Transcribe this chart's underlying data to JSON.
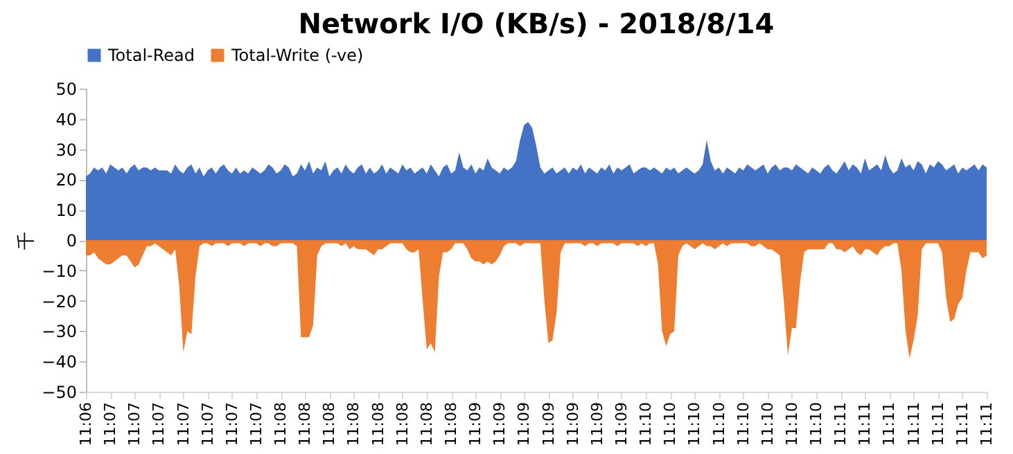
{
  "chart_data": {
    "type": "area",
    "title": "Network I/O (KB/s) - 2018/8/14",
    "ylabel": "千",
    "categories": [
      "11:06",
      null,
      null,
      null,
      null,
      null,
      "11:07",
      null,
      null,
      null,
      null,
      null,
      "11:07",
      null,
      null,
      null,
      null,
      null,
      "11:07",
      null,
      null,
      null,
      null,
      null,
      "11:07",
      null,
      null,
      null,
      null,
      null,
      "11:07",
      null,
      null,
      null,
      null,
      null,
      "11:07",
      null,
      null,
      null,
      null,
      null,
      "11:07",
      null,
      null,
      null,
      null,
      null,
      "11:08",
      null,
      null,
      null,
      null,
      null,
      "11:08",
      null,
      null,
      null,
      null,
      null,
      "11:08",
      null,
      null,
      null,
      null,
      null,
      "11:08",
      null,
      null,
      null,
      null,
      null,
      "11:08",
      null,
      null,
      null,
      null,
      null,
      "11:08",
      null,
      null,
      null,
      null,
      null,
      "11:08",
      null,
      null,
      null,
      null,
      null,
      "11:08",
      null,
      null,
      null,
      null,
      null,
      "11:09",
      null,
      null,
      null,
      null,
      null,
      "11:09",
      null,
      null,
      null,
      null,
      null,
      "11:09",
      null,
      null,
      null,
      null,
      null,
      "11:09",
      null,
      null,
      null,
      null,
      null,
      "11:09",
      null,
      null,
      null,
      null,
      null,
      "11:09",
      null,
      null,
      null,
      null,
      null,
      "11:09",
      null,
      null,
      null,
      null,
      null,
      "11:10",
      null,
      null,
      null,
      null,
      null,
      "11:10",
      null,
      null,
      null,
      null,
      null,
      "11:10",
      null,
      null,
      null,
      null,
      null,
      "11:10",
      null,
      null,
      null,
      null,
      null,
      "11:10",
      null,
      null,
      null,
      null,
      null,
      "11:10",
      null,
      null,
      null,
      null,
      null,
      "11:10",
      null,
      null,
      null,
      null,
      null,
      "11:10",
      null,
      null,
      null,
      null,
      null,
      "11:11",
      null,
      null,
      null,
      null,
      null,
      "11:11",
      null,
      null,
      null,
      null,
      null,
      "11:11",
      null,
      null,
      null,
      null,
      null,
      "11:11",
      null,
      null,
      null,
      null,
      null,
      "11:11",
      null,
      null,
      null,
      null,
      null,
      "11:11",
      null,
      null,
      null,
      null,
      null,
      "11:11"
    ],
    "series": [
      {
        "name": "Total-Read",
        "color": "#4472c4",
        "values": [
          21,
          22,
          24,
          23,
          24,
          22,
          25,
          24,
          23,
          24,
          22,
          24,
          25,
          23,
          24,
          24,
          23,
          24,
          23,
          23,
          23,
          22,
          25,
          23,
          22,
          24,
          25,
          22,
          24,
          21,
          23,
          24,
          22,
          24,
          25,
          23,
          22,
          24,
          22,
          23,
          22,
          24,
          23,
          22,
          23,
          25,
          24,
          22,
          23,
          25,
          24,
          21,
          22,
          25,
          23,
          26,
          22,
          24,
          23,
          26,
          21,
          23,
          24,
          22,
          25,
          23,
          22,
          24,
          25,
          22,
          24,
          22,
          23,
          25,
          22,
          24,
          23,
          22,
          25,
          23,
          24,
          22,
          23,
          24,
          22,
          25,
          23,
          21,
          24,
          25,
          22,
          23,
          29,
          24,
          23,
          25,
          22,
          24,
          23,
          27,
          24,
          23,
          22,
          24,
          23,
          24,
          26,
          33,
          38,
          39,
          37,
          31,
          24,
          22,
          23,
          24,
          22,
          23,
          24,
          22,
          24,
          23,
          25,
          22,
          24,
          23,
          22,
          24,
          23,
          25,
          22,
          24,
          23,
          24,
          25,
          22,
          23,
          24,
          24,
          23,
          24,
          23,
          22,
          24,
          23,
          24,
          22,
          23,
          24,
          23,
          22,
          23,
          25,
          33,
          26,
          23,
          24,
          22,
          24,
          23,
          22,
          24,
          23,
          25,
          24,
          23,
          24,
          25,
          22,
          24,
          25,
          23,
          24,
          24,
          23,
          25,
          24,
          23,
          22,
          24,
          23,
          22,
          24,
          25,
          23,
          22,
          24,
          26,
          23,
          25,
          24,
          22,
          27,
          23,
          24,
          25,
          23,
          28,
          24,
          22,
          23,
          27,
          24,
          25,
          23,
          26,
          25,
          22,
          25,
          24,
          26,
          25,
          23,
          24,
          25,
          22,
          24,
          23,
          24,
          25,
          23,
          25,
          24
        ]
      },
      {
        "name": "Total-Write (-ve)",
        "color": "#ed7d31",
        "values": [
          -5,
          -5,
          -4,
          -6,
          -7,
          -8,
          -8,
          -7,
          -6,
          -5,
          -5,
          -7,
          -9,
          -8,
          -5,
          -2,
          -2,
          -1,
          -2,
          -3,
          -4,
          -5,
          -3,
          -15,
          -37,
          -30,
          -31,
          -12,
          -2,
          -1,
          -1,
          -2,
          -1,
          -1,
          -1,
          -2,
          -1,
          -1,
          -1,
          -2,
          -1,
          -1,
          -1,
          -2,
          -1,
          -1,
          -2,
          -2,
          -1,
          -1,
          -1,
          -1,
          -2,
          -32,
          -32,
          -32,
          -28,
          -5,
          -2,
          -1,
          -1,
          -1,
          -1,
          -2,
          -1,
          -3,
          -2,
          -3,
          -3,
          -3,
          -4,
          -5,
          -3,
          -3,
          -2,
          -1,
          -1,
          -1,
          -1,
          -3,
          -4,
          -4,
          -3,
          -20,
          -36,
          -34,
          -37,
          -12,
          -4,
          -4,
          -3,
          -1,
          -1,
          -1,
          -3,
          -6,
          -7,
          -7,
          -8,
          -7,
          -8,
          -7,
          -5,
          -2,
          -1,
          -1,
          -1,
          -2,
          -1,
          -1,
          -1,
          -1,
          -1,
          -20,
          -34,
          -33,
          -24,
          -4,
          -1,
          -1,
          -1,
          -1,
          -1,
          -2,
          -1,
          -1,
          -2,
          -1,
          -1,
          -1,
          -1,
          -2,
          -1,
          -1,
          -1,
          -1,
          -2,
          -1,
          -2,
          -1,
          -1,
          -8,
          -30,
          -35,
          -31,
          -30,
          -5,
          -2,
          -1,
          -2,
          -3,
          -2,
          -1,
          -2,
          -2,
          -3,
          -2,
          -1,
          -2,
          -1,
          -1,
          -1,
          -1,
          -1,
          -2,
          -2,
          -1,
          -2,
          -3,
          -3,
          -4,
          -5,
          -20,
          -38,
          -29,
          -29,
          -14,
          -4,
          -3,
          -3,
          -3,
          -3,
          -3,
          -1,
          -1,
          -3,
          -3,
          -4,
          -3,
          -2,
          -4,
          -5,
          -3,
          -3,
          -4,
          -5,
          -3,
          -2,
          -2,
          -1,
          -1,
          -10,
          -30,
          -39,
          -33,
          -25,
          -3,
          -1,
          -1,
          -1,
          -1,
          -4,
          -19,
          -27,
          -26,
          -21,
          -19,
          -10,
          -4,
          -4,
          -4,
          -6,
          -5
        ]
      }
    ],
    "ylim": [
      -50,
      50
    ],
    "yticks": [
      -50,
      -40,
      -30,
      -20,
      -10,
      0,
      10,
      20,
      30,
      40,
      50
    ],
    "grid": false,
    "legend": "top"
  }
}
